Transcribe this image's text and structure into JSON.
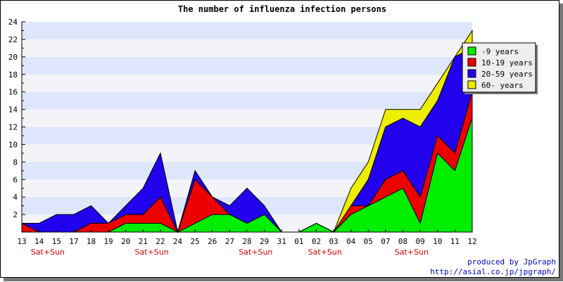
{
  "chart_data": {
    "type": "area",
    "stacked": true,
    "title": "The number of influenza infection persons",
    "x": [
      "13",
      "14",
      "15",
      "17",
      "18",
      "19",
      "20",
      "21",
      "22",
      "24",
      "25",
      "26",
      "27",
      "28",
      "29",
      "31",
      "01",
      "02",
      "03",
      "04",
      "05",
      "07",
      "08",
      "09",
      "10",
      "11",
      "12"
    ],
    "weekend_label": "Sat+Sun",
    "weekend_after": [
      "14",
      "21",
      "28",
      "02",
      "08"
    ],
    "ylim": [
      0,
      24
    ],
    "yticks": [
      2,
      4,
      6,
      8,
      10,
      12,
      14,
      16,
      18,
      20,
      22,
      24
    ],
    "grid": true,
    "legend_position": "top-right",
    "series": [
      {
        "name": "-9 years",
        "color": "#00ee00",
        "values": [
          0,
          0,
          0,
          0,
          0,
          0,
          1,
          1,
          1,
          0,
          1,
          2,
          2,
          1,
          2,
          0,
          0,
          1,
          0,
          2,
          3,
          4,
          5,
          1,
          9,
          7,
          13
        ]
      },
      {
        "name": "10-19 years",
        "color": "#ee0000",
        "values": [
          1,
          0,
          0,
          0,
          1,
          1,
          1,
          1,
          3,
          0,
          5,
          2,
          0,
          0,
          0,
          0,
          0,
          0,
          0,
          1,
          0,
          2,
          2,
          3,
          2,
          2,
          3
        ]
      },
      {
        "name": "20-59 years",
        "color": "#2200ee",
        "values": [
          0,
          1,
          2,
          2,
          2,
          0,
          1,
          3,
          5,
          0,
          1,
          0,
          1,
          4,
          1,
          0,
          0,
          0,
          0,
          0,
          3,
          6,
          6,
          8,
          4,
          11,
          5
        ]
      },
      {
        "name": "60- years",
        "color": "#eeee00",
        "values": [
          0,
          0,
          0,
          0,
          0,
          0,
          0,
          0,
          0,
          0,
          0,
          0,
          0,
          0,
          0,
          0,
          0,
          0,
          0,
          2,
          2,
          2,
          1,
          2,
          2,
          0,
          2
        ]
      }
    ]
  },
  "credit": {
    "line1": "produced by JpGraph",
    "line2": "http://asial.co.jp/jpgraph/"
  }
}
